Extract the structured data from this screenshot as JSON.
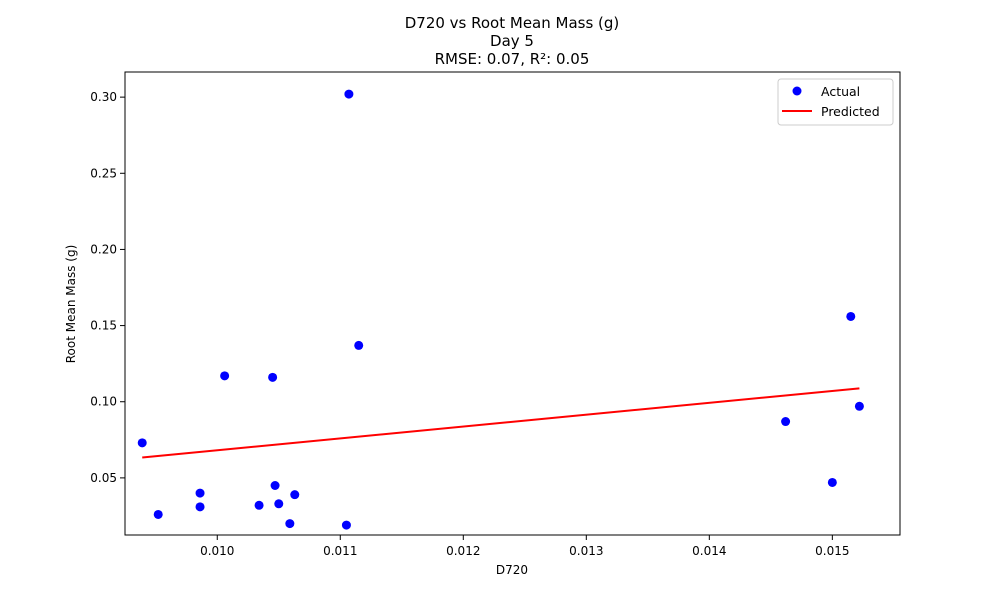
{
  "chart_data": {
    "type": "scatter",
    "title_lines": [
      "D720 vs Root Mean Mass (g)",
      "Day 5",
      "RMSE: 0.07, R²: 0.05"
    ],
    "xlabel": "D720",
    "ylabel": "Root Mean Mass (g)",
    "xlim": [
      0.00925,
      0.01555
    ],
    "ylim": [
      0.0125,
      0.3165
    ],
    "x_ticks": [
      0.01,
      0.011,
      0.012,
      0.013,
      0.014,
      0.015
    ],
    "x_tick_labels": [
      "0.010",
      "0.011",
      "0.012",
      "0.013",
      "0.014",
      "0.015"
    ],
    "y_ticks": [
      0.05,
      0.1,
      0.15,
      0.2,
      0.25,
      0.3
    ],
    "y_tick_labels": [
      "0.05",
      "0.10",
      "0.15",
      "0.20",
      "0.25",
      "0.30"
    ],
    "grid": false,
    "legend_position": "top-right",
    "series": [
      {
        "name": "Actual",
        "kind": "scatter",
        "color": "#0000ff",
        "points": [
          {
            "x": 0.00939,
            "y": 0.073
          },
          {
            "x": 0.00952,
            "y": 0.026
          },
          {
            "x": 0.00986,
            "y": 0.04
          },
          {
            "x": 0.00986,
            "y": 0.031
          },
          {
            "x": 0.01006,
            "y": 0.117
          },
          {
            "x": 0.01034,
            "y": 0.032
          },
          {
            "x": 0.01045,
            "y": 0.116
          },
          {
            "x": 0.01047,
            "y": 0.045
          },
          {
            "x": 0.0105,
            "y": 0.033
          },
          {
            "x": 0.01059,
            "y": 0.02
          },
          {
            "x": 0.01063,
            "y": 0.039
          },
          {
            "x": 0.01105,
            "y": 0.019
          },
          {
            "x": 0.01107,
            "y": 0.302
          },
          {
            "x": 0.01115,
            "y": 0.137
          },
          {
            "x": 0.01462,
            "y": 0.087
          },
          {
            "x": 0.015,
            "y": 0.047
          },
          {
            "x": 0.01515,
            "y": 0.156
          },
          {
            "x": 0.01522,
            "y": 0.097
          }
        ]
      },
      {
        "name": "Predicted",
        "kind": "line",
        "color": "#ff0000",
        "points": [
          {
            "x": 0.00939,
            "y": 0.0634
          },
          {
            "x": 0.01522,
            "y": 0.1088
          }
        ]
      }
    ]
  }
}
